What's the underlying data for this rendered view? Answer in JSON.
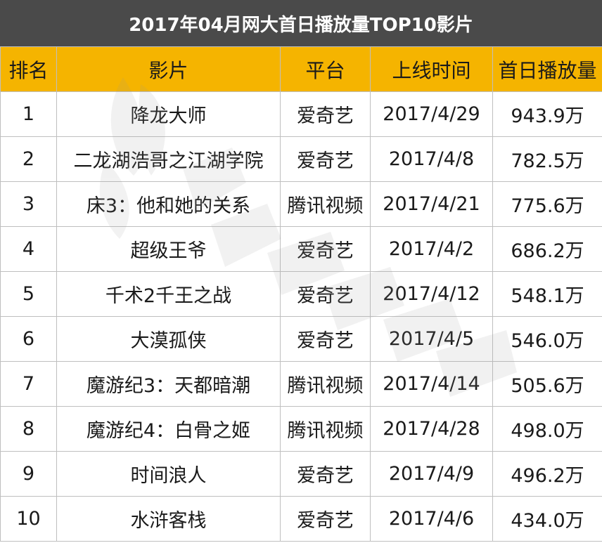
{
  "title": "2017年04月网大首日播放量TOP10影片",
  "headers": [
    "排名",
    "影片",
    "平台",
    "上线时间",
    "首日播放量"
  ],
  "rows": [
    {
      "rank": "1",
      "film": "降龙大师",
      "platform": "爱奇艺",
      "date": "2017/4/29",
      "views": "943.9万"
    },
    {
      "rank": "2",
      "film": "二龙湖浩哥之江湖学院",
      "platform": "爱奇艺",
      "date": "2017/4/8",
      "views": "782.5万"
    },
    {
      "rank": "3",
      "film": "床3：他和她的关系",
      "platform": "腾讯视频",
      "date": "2017/4/21",
      "views": "775.6万"
    },
    {
      "rank": "4",
      "film": "超级王爷",
      "platform": "爱奇艺",
      "date": "2017/4/2",
      "views": "686.2万"
    },
    {
      "rank": "5",
      "film": "千术2千王之战",
      "platform": "爱奇艺",
      "date": "2017/4/12",
      "views": "548.1万"
    },
    {
      "rank": "6",
      "film": "大漠孤侠",
      "platform": "爱奇艺",
      "date": "2017/4/5",
      "views": "546.0万"
    },
    {
      "rank": "7",
      "film": "魔游纪3：天都暗潮",
      "platform": "腾讯视频",
      "date": "2017/4/14",
      "views": "505.6万"
    },
    {
      "rank": "8",
      "film": "魔游纪4：白骨之姬",
      "platform": "腾讯视频",
      "date": "2017/4/28",
      "views": "498.0万"
    },
    {
      "rank": "9",
      "film": "时间浪人",
      "platform": "爱奇艺",
      "date": "2017/4/9",
      "views": "496.2万"
    },
    {
      "rank": "10",
      "film": "水浒客栈",
      "platform": "爱奇艺",
      "date": "2017/4/6",
      "views": "434.0万"
    }
  ],
  "colors": {
    "title_bg": "#4a4a4a",
    "header_bg": "#f5b400",
    "border": "#bfbfbf"
  }
}
